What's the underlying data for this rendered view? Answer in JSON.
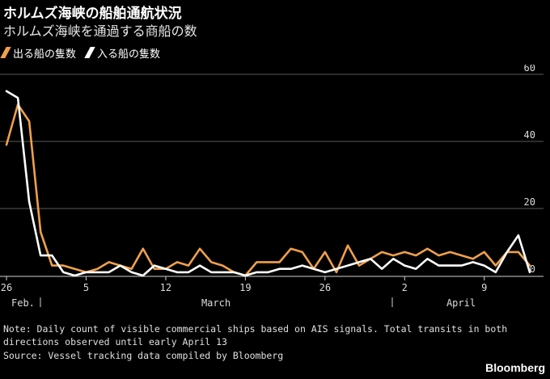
{
  "header": {
    "title": "ホルムズ海峡の船舶通航状況",
    "subtitle": "ホルムズ海峡を通過する商船の数"
  },
  "legend": [
    {
      "label": "出る船の隻数",
      "color": "#f0a04b"
    },
    {
      "label": "入る船の隻数",
      "color": "#ffffff"
    }
  ],
  "footer": {
    "note": "Note: Daily count of visible commercial ships based on AIS signals. Total transits in both directions observed until early April 13",
    "source": "Source: Vessel tracking data compiled by Bloomberg",
    "brand": "Bloomberg"
  },
  "chart_data": {
    "type": "line",
    "x_start": "Feb 26",
    "x_end": "Apr 12",
    "x_tick_labels": [
      "26",
      "5",
      "12",
      "19",
      "26",
      "2",
      "9"
    ],
    "month_labels": [
      "Feb.",
      "March",
      "April"
    ],
    "y_ticks": [
      0,
      20,
      40,
      60
    ],
    "ylim": [
      0,
      60
    ],
    "grid": true,
    "legend_position": "top-left",
    "series": [
      {
        "name": "出る船の隻数",
        "color": "#f0a04b",
        "values": [
          39,
          51,
          46,
          13,
          3,
          3,
          2,
          1,
          2,
          4,
          3,
          2,
          8,
          2,
          2,
          4,
          3,
          8,
          4,
          3,
          1,
          0,
          4,
          4,
          4,
          8,
          7,
          2,
          7,
          1,
          9,
          3,
          5,
          7,
          6,
          7,
          6,
          8,
          6,
          7,
          6,
          5,
          7,
          3,
          7,
          7,
          3
        ]
      },
      {
        "name": "入る船の隻数",
        "color": "#ffffff",
        "values": [
          55,
          53,
          22,
          6,
          6,
          1,
          0,
          1,
          1,
          1,
          3,
          1,
          0,
          3,
          2,
          1,
          1,
          3,
          1,
          1,
          1,
          0,
          1,
          1,
          2,
          2,
          3,
          2,
          1,
          2,
          3,
          4,
          5,
          2,
          5,
          3,
          2,
          5,
          3,
          3,
          3,
          4,
          3,
          1,
          7,
          12,
          1
        ]
      }
    ]
  }
}
